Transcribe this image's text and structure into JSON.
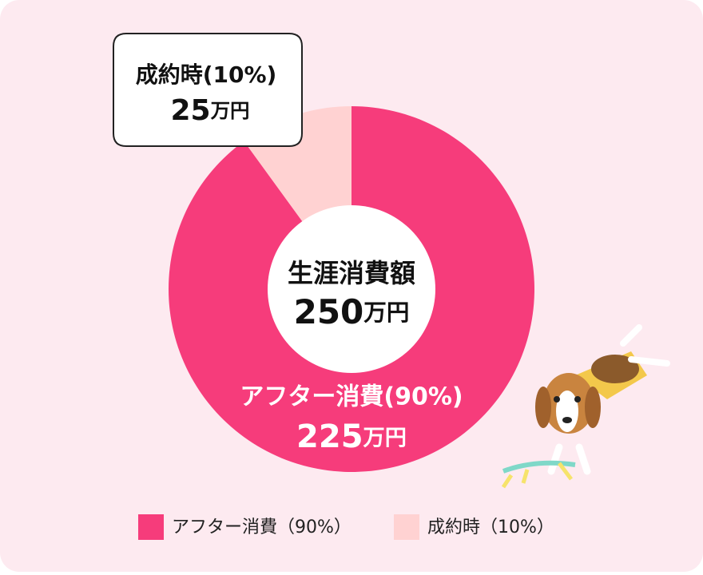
{
  "chart_data": {
    "type": "pie",
    "donut": true,
    "categories": [
      "アフター消費（90%）",
      "成約時（10%）"
    ],
    "values": [
      225,
      25
    ],
    "value_labels": [
      "225万円",
      "25万円"
    ],
    "slice_labels": [
      "アフター消費(90%)",
      "成約時(10%)"
    ],
    "colors": [
      "#f63c7b",
      "#ffd2d2"
    ],
    "center_label": "生涯消費額",
    "center_value_label": "250万円"
  }
}
